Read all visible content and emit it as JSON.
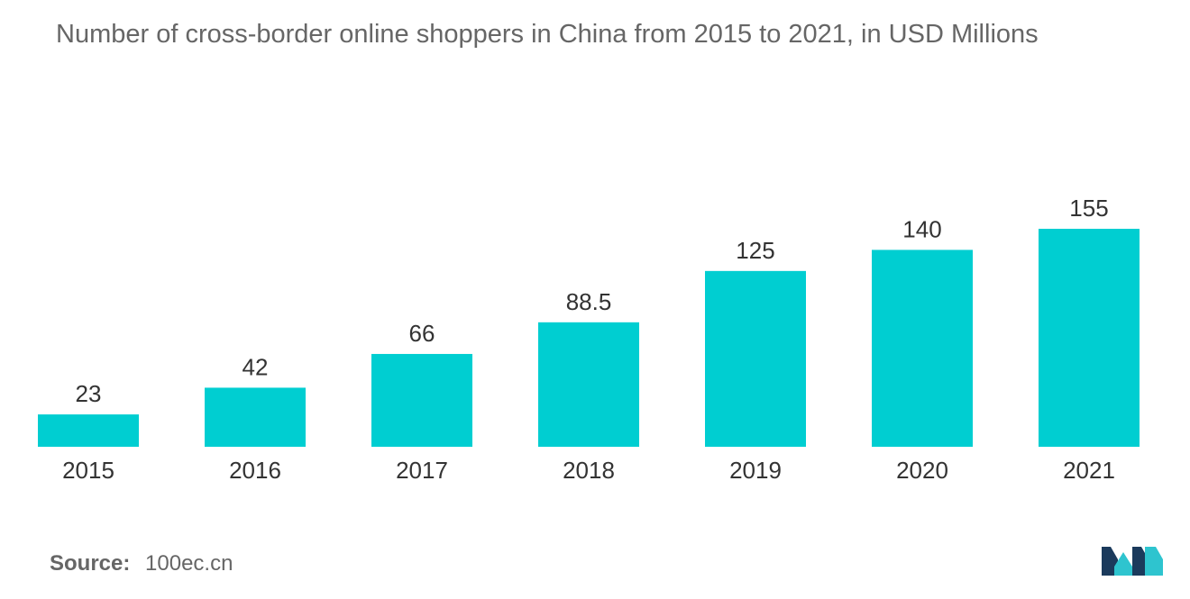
{
  "chart_data": {
    "type": "bar",
    "title": "Number of cross-border online shoppers in China from 2015 to 2021, in USD Millions",
    "categories": [
      "2015",
      "2016",
      "2017",
      "2018",
      "2019",
      "2020",
      "2021"
    ],
    "values": [
      23,
      42,
      66,
      88.5,
      125,
      140,
      155
    ],
    "value_labels": [
      "23",
      "42",
      "66",
      "88.5",
      "125",
      "140",
      "155"
    ],
    "xlabel": "",
    "ylabel": "",
    "ylim": [
      0,
      155
    ],
    "grid": false,
    "legend": "none",
    "bar_color": "#00CED1"
  },
  "source": {
    "label": "Source:",
    "value": "100ec.cn"
  },
  "logo": {
    "icon": "mordor-intelligence-logo-icon",
    "colors": [
      "#1B3A5C",
      "#2EC4CF"
    ]
  }
}
